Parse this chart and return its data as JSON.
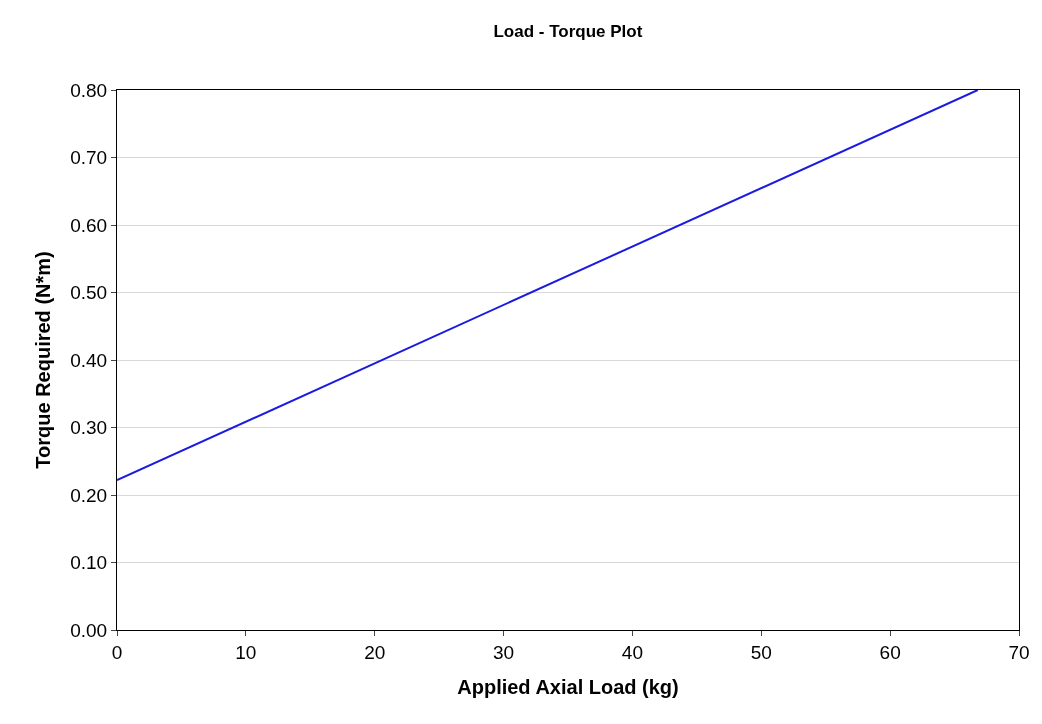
{
  "chart_data": {
    "type": "line",
    "title": "Load - Torque Plot",
    "xlabel": "Applied Axial Load (kg)",
    "ylabel": "Torque Required (N*m)",
    "series": [
      {
        "color": "#1a1ae0",
        "x": [
          0,
          66.8
        ],
        "values": [
          0.222,
          0.8
        ]
      }
    ],
    "xlim": [
      0,
      70
    ],
    "xticks": [
      0,
      10,
      20,
      30,
      40,
      50,
      60,
      70
    ],
    "ylim": [
      0,
      0.8
    ],
    "yticks": [
      {
        "value": 0,
        "label": "0.00"
      },
      {
        "value": 0.1,
        "label": "0.10"
      },
      {
        "value": 0.2,
        "label": "0.20"
      },
      {
        "value": 0.3,
        "label": "0.30"
      },
      {
        "value": 0.4,
        "label": "0.40"
      },
      {
        "value": 0.5,
        "label": "0.50"
      },
      {
        "value": 0.6,
        "label": "0.60"
      },
      {
        "value": 0.7,
        "label": "0.70"
      },
      {
        "value": 0.8,
        "label": "0.80"
      }
    ],
    "grid": "y",
    "marker": "none",
    "line_style": "solid"
  }
}
